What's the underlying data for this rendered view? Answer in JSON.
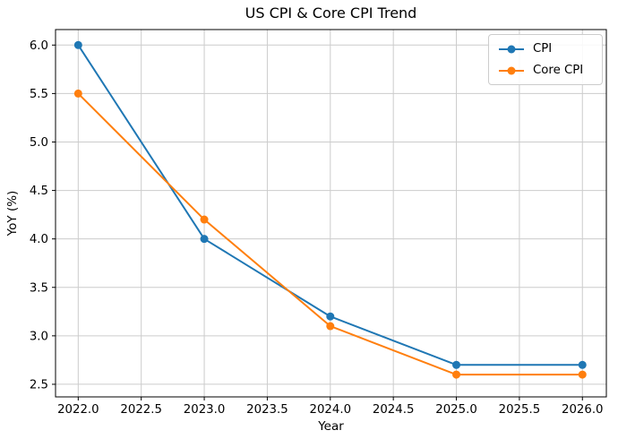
{
  "chart_data": {
    "type": "line",
    "title": "US CPI & Core CPI Trend",
    "xlabel": "Year",
    "ylabel": "YoY (%)",
    "x": [
      2022,
      2023,
      2024,
      2025,
      2026
    ],
    "series": [
      {
        "name": "CPI",
        "color": "#1f77b4",
        "values": [
          6.0,
          4.0,
          3.2,
          2.7,
          2.7
        ]
      },
      {
        "name": "Core CPI",
        "color": "#ff7f0e",
        "values": [
          5.5,
          4.2,
          3.1,
          2.6,
          2.6
        ]
      }
    ],
    "xticks": [
      2022.0,
      2022.5,
      2023.0,
      2023.5,
      2024.0,
      2024.5,
      2025.0,
      2025.5,
      2026.0
    ],
    "yticks": [
      2.5,
      3.0,
      3.5,
      4.0,
      4.5,
      5.0,
      5.5,
      6.0
    ],
    "xlim": [
      2021.82,
      2026.19
    ],
    "ylim": [
      2.37,
      6.16
    ],
    "grid": true,
    "grid_color": "#cccccc",
    "spine_color": "#000000",
    "marker": "circle",
    "legend_position": "upper right"
  }
}
